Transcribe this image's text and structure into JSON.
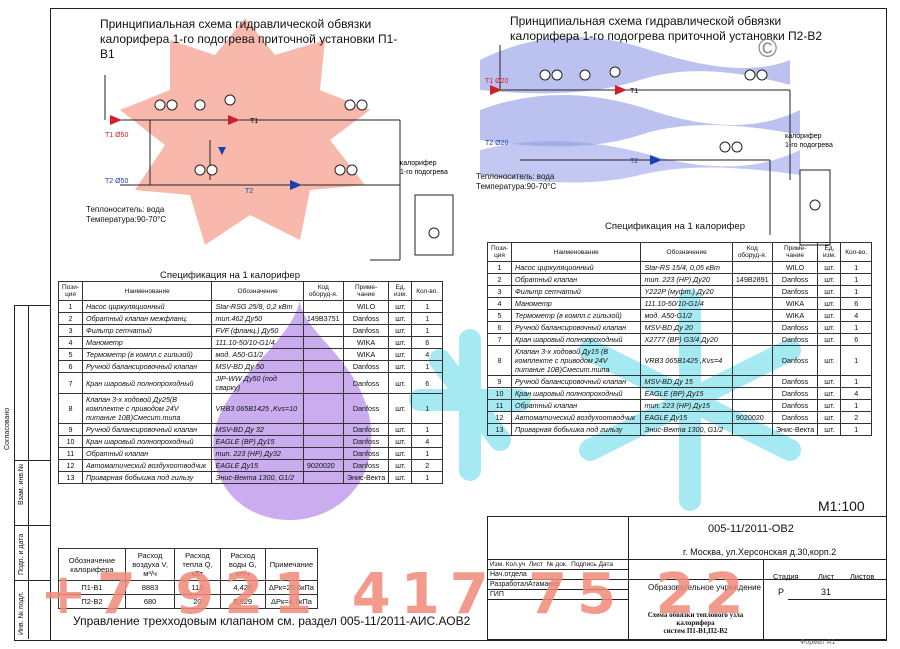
{
  "schemes": {
    "p1": {
      "title_line1": "Принципиальная схема гидравлической обвязки",
      "title_line2": "калорифера 1-го подогрева приточной установки  П1-В1",
      "coolant_line1": "Теплоноситель: вода",
      "coolant_line2": "Температура:90-70°С",
      "heater_label_line1": "калорифер",
      "heater_label_line2": "1-го подогрева",
      "t1_label": "Т1 Ø50",
      "t2_label": "Т2 Ø50",
      "t1_short": "Т1",
      "t2_short": "Т2"
    },
    "p2": {
      "title_line1": "Принципиальная схема гидравлической обвязки",
      "title_line2": "калорифера 1-го подогрева приточной установки П2-В2",
      "coolant_line1": "Теплоноситель: вода",
      "coolant_line2": "Температура:90-70°С",
      "heater_label_line1": "калорифер",
      "heater_label_line2": "1-го подогрева",
      "t1_label": "Т1 Ø20",
      "t2_label": "Т2 Ø20",
      "t1_short": "Т1",
      "t2_short": "Т2"
    }
  },
  "spec_left": {
    "title": "Спецификация на 1 калорифер",
    "headers": [
      "Пози-ция",
      "Наименование",
      "Обозначение",
      "Код оборуд-я.",
      "Приме-чание",
      "Ед. изм.",
      "Кол-во."
    ],
    "rows": [
      [
        "1",
        "Насос циркуляционный",
        "Star-RSG 25/8, 0,2 кВт",
        "",
        "WILO",
        "шт.",
        "1"
      ],
      [
        "2",
        "Обратный клапан межфланц.",
        "тип.462 Ду50",
        "149В3751",
        "Danfoss",
        "шт.",
        "1"
      ],
      [
        "3",
        "Фильтр сетчатый",
        "FVF (фланц.) Ду50",
        "",
        "Danfoss",
        "шт.",
        "1"
      ],
      [
        "4",
        "Манометр",
        "111.10-50/10-G1/4",
        "",
        "WIKA",
        "шт.",
        "6"
      ],
      [
        "5",
        "Термометр (в компл.с гильзой)",
        "мод. А50-G1/2",
        "",
        "WIKA",
        "шт.",
        "4"
      ],
      [
        "6",
        "Ручной балансировочный клапан",
        "MSV-BD Ду 50",
        "",
        "Danfoss",
        "шт.",
        "1"
      ],
      [
        "7",
        "Кран шаровый полнопроходный",
        "JIP-WW Ду50 (под сварку)",
        "",
        "Danfoss",
        "шт.",
        "6"
      ],
      [
        "8",
        "Клапан 3-х ходовой Ду25(В комплекте с приводом 24V питание 10В)Смесит.типа",
        "VRB3 065В1425 ,Kvs=10",
        "",
        "Danfoss",
        "шт.",
        "1"
      ],
      [
        "9",
        "Ручной балансировочный клапан",
        "MSV-BD Ду 32",
        "",
        "Danfoss",
        "шт.",
        "1"
      ],
      [
        "10",
        "Кран шаровый полнопроходный",
        "EAGLE (ВР) Ду15",
        "",
        "Danfoss",
        "шт.",
        "4"
      ],
      [
        "11",
        "Обратный клапан",
        "тип. 223 (НР) Ду32",
        "",
        "Danfoss",
        "шт.",
        "1"
      ],
      [
        "12",
        "Автоматический воздухоотводчик",
        "EAGLE Ду15",
        "9020020",
        "Danfoss",
        "шт.",
        "2"
      ],
      [
        "13",
        "Приварная бобышка под гильзу",
        "Энис-Векта 1300, G1/2",
        "",
        "Энис-Векта",
        "шт.",
        "1"
      ]
    ]
  },
  "spec_right": {
    "title": "Спецификация на 1 калорифер",
    "headers": [
      "Пози-ция",
      "Наименование",
      "Обозначение",
      "Код оборуд-я.",
      "Приме-чание",
      "Ед. изм.",
      "Кол-во."
    ],
    "rows": [
      [
        "1",
        "Насос циркуляционный",
        "Star-RS 15/4, 0,05 кВт",
        "",
        "WILO",
        "шт.",
        "1"
      ],
      [
        "2",
        "Обратный клапан",
        "тип. 223 (НР) Ду20",
        "149В2891",
        "Danfoss",
        "шт.",
        "1"
      ],
      [
        "3",
        "Фильтр сетчатый",
        "Y222P (муфт.) Ду20",
        "",
        "Danfoss",
        "шт.",
        "1"
      ],
      [
        "4",
        "Манометр",
        "111.10-50/10-G1/4",
        "",
        "WIKA",
        "шт.",
        "6"
      ],
      [
        "5",
        "Термометр (в компл.с гильзой)",
        "мод. А50-G1/2",
        "",
        "WIKA",
        "шт.",
        "4"
      ],
      [
        "6",
        "Ручной балансировочный клапан",
        "MSV-BD Ду 20",
        "",
        "Danfoss",
        "шт.",
        "1"
      ],
      [
        "7",
        "Кран шаровый полнопроходный",
        "X2777 (ВР) G3/4 Ду20",
        "",
        "Danfoss",
        "шт.",
        "6"
      ],
      [
        "8",
        "Клапан 3-х ходовой Ду15 (В комплекте с приводом 24V питание 10В)Смесит.типа",
        "VRB3 065В1425 ,Kvs=4",
        "",
        "Danfoss",
        "шт.",
        "1"
      ],
      [
        "9",
        "Ручной балансировочный клапан",
        "MSV-BD Ду 15",
        "",
        "Danfoss",
        "шт.",
        "1"
      ],
      [
        "10",
        "Кран шаровый полнопроходный",
        "EAGLE (ВР) Ду15",
        "",
        "Danfoss",
        "шт.",
        "4"
      ],
      [
        "11",
        "Обратный клапан",
        "тип. 223 (НР) Ду15",
        "",
        "Danfoss",
        "шт.",
        "1"
      ],
      [
        "12",
        "Автоматический воздухоотводчик",
        "EAGLE Ду15",
        "9020020",
        "Danfoss",
        "шт.",
        "2"
      ],
      [
        "13",
        "Приварная бобышка под гильзу",
        "Энис-Векта 1300, G1/2",
        "",
        "Энис-Векта",
        "шт.",
        "1"
      ]
    ]
  },
  "flow_table": {
    "headers": [
      "Обозначение калорифера",
      "Расход воздуха V, м³/ч",
      "Расход тепла Q, кВт",
      "Расход воды G, м³/ч",
      "Примечание"
    ],
    "rows": [
      [
        "П1-В1",
        "8883",
        "115",
        "4,428",
        "ΔPк=20,6кПа"
      ],
      [
        "П2-В2",
        "680",
        "20",
        "0,829",
        "ΔPк=4,7кПа"
      ]
    ]
  },
  "footer_note": "Управление трехходовым клапаном см. раздел 005-11/2011-АИС.АОВ2",
  "scale": "М1:100",
  "stamp": {
    "doc_code": "005-11/2011-ОВ2",
    "address": "г. Москва, ул.Херсонская д.30,корп.2",
    "col_headers": [
      "Изм.",
      "Кол.уч",
      "Лист",
      "№ док.",
      "Подпись",
      "Дата"
    ],
    "role1": "Нач.отдела",
    "role2": "Разработал",
    "role2_name": "Атаманов",
    "role3": "ГИП",
    "org": "Образовательное учреждение",
    "stage_label": "Стадия",
    "sheet_label": "Лист",
    "sheets_label": "Листов",
    "stage": "Р",
    "sheet": "31",
    "drawing_title_line1": "Схема обвязки теплового узла калорифера",
    "drawing_title_line2": "систем П1-В1,П2-В2",
    "format": "Формат  А1"
  },
  "side_labels": [
    "Согласовано",
    "Взам. инв.№",
    "Подп. и дата",
    "Инв. № подл."
  ],
  "watermark": {
    "phone": "+7 921 417 75 22",
    "copyright": "©"
  },
  "colors": {
    "watermark_red": "#f08a7a",
    "watermark_purple": "#a77ee0",
    "watermark_blue": "#8aa0e8",
    "watermark_cyan": "#8fe0ec",
    "supply_red": "#d0202a",
    "return_blue": "#1a3fb0"
  }
}
